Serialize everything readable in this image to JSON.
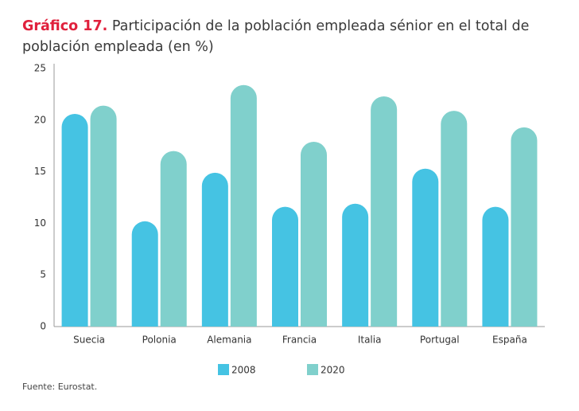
{
  "chart_data": {
    "type": "bar",
    "title_prefix": "Gráfico 17.",
    "title": "Participación de la población empleada sénior en el total de población empleada (en %)",
    "source": "Fuente: Eurostat.",
    "categories": [
      "Suecia",
      "Polonia",
      "Alemania",
      "Francia",
      "Italia",
      "Portugal",
      "España"
    ],
    "series": [
      {
        "name": "2008",
        "color": "#45c3e3",
        "values": [
          20.6,
          10.2,
          14.9,
          11.6,
          11.9,
          15.3,
          11.6
        ]
      },
      {
        "name": "2020",
        "color": "#80d0cc",
        "values": [
          21.4,
          17.0,
          23.4,
          17.9,
          22.3,
          20.9,
          19.3
        ]
      }
    ],
    "ylim": [
      0,
      25
    ],
    "yticks": [
      0,
      5,
      10,
      15,
      20,
      25
    ],
    "grid": false
  }
}
